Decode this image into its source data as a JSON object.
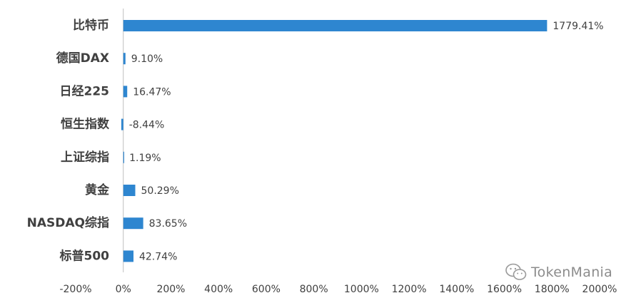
{
  "chart_data": {
    "type": "bar",
    "orientation": "horizontal",
    "categories": [
      "比特币",
      "德国DAX",
      "日经225",
      "恒生指数",
      "上证综指",
      "黄金",
      "NASDAQ综指",
      "标普500"
    ],
    "values": [
      1779.41,
      9.1,
      16.47,
      -8.44,
      1.19,
      50.29,
      83.65,
      42.74
    ],
    "data_labels": [
      "1779.41%",
      "9.10%",
      "16.47%",
      "-8.44%",
      "1.19%",
      "50.29%",
      "83.65%",
      "42.74%"
    ],
    "xlim": [
      -200,
      2000
    ],
    "x_ticks": [
      -200,
      0,
      200,
      400,
      600,
      800,
      1000,
      1200,
      1400,
      1600,
      1800,
      2000
    ],
    "x_tick_labels": [
      "-200%",
      "0%",
      "200%",
      "400%",
      "600%",
      "800%",
      "1000%",
      "1200%",
      "1400%",
      "1600%",
      "1800%",
      "2000%"
    ],
    "grid": false,
    "bar_color": "#2e86d0",
    "title": "",
    "xlabel": "",
    "ylabel": ""
  },
  "watermark": {
    "icon": "wechat-icon",
    "text": "TokenMania"
  }
}
